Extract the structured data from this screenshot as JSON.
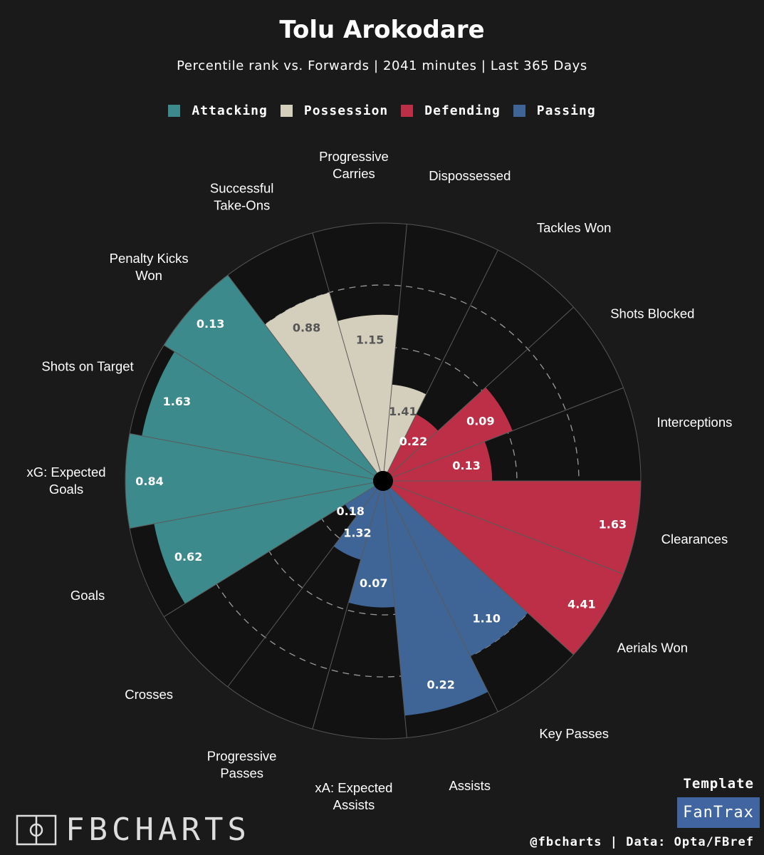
{
  "header": {
    "title": "Tolu Arokodare",
    "subtitle": "Percentile rank vs. Forwards | 2041 minutes | Last 365 Days"
  },
  "legend": [
    {
      "label": "Attacking",
      "color": "#3d8a8c"
    },
    {
      "label": "Possession",
      "color": "#d4cfbd"
    },
    {
      "label": "Defending",
      "color": "#bc2f46"
    },
    {
      "label": "Passing",
      "color": "#3f6496"
    }
  ],
  "colors": {
    "background": "#1a1a1a",
    "slice_background": "#121212",
    "Attacking": "#3d8a8c",
    "Possession": "#d4cfbd",
    "Defending": "#bc2f46",
    "Passing": "#3f6496"
  },
  "chart_data": {
    "type": "polar-bar",
    "title": "Tolu Arokodare",
    "subtitle": "Percentile rank vs. Forwards | 2041 minutes | Last 365 Days",
    "rlim": [
      0,
      100
    ],
    "gridlines": [
      25,
      50,
      75
    ],
    "start": "right, counter-clockwise",
    "categories": [
      {
        "label": "Interceptions",
        "group": "Defending",
        "percentile": 40,
        "value": "0.13"
      },
      {
        "label": "Shots Blocked",
        "group": "Defending",
        "percentile": 52,
        "value": "0.09"
      },
      {
        "label": "Tackles Won",
        "group": "Defending",
        "percentile": 26,
        "value": "0.22"
      },
      {
        "label": "Dispossessed",
        "group": "Possession",
        "percentile": 35,
        "value": "1.41"
      },
      {
        "label": "Progressive\nCarries",
        "group": "Possession",
        "percentile": 63,
        "value": "1.15"
      },
      {
        "label": "Successful\nTake-Ons",
        "group": "Possession",
        "percentile": 75,
        "value": "0.88"
      },
      {
        "label": "Penalty Kicks\nWon",
        "group": "Attacking",
        "percentile": 100,
        "value": "0.13"
      },
      {
        "label": "Shots on Target",
        "group": "Attacking",
        "percentile": 95,
        "value": "1.63"
      },
      {
        "label": "xG: Expected\nGoals",
        "group": "Attacking",
        "percentile": 100,
        "value": "0.84"
      },
      {
        "label": "Goals",
        "group": "Attacking",
        "percentile": 90,
        "value": "0.62"
      },
      {
        "label": "Crosses",
        "group": "Passing",
        "percentile": 14,
        "value": "0.18"
      },
      {
        "label": "Progressive\nPasses",
        "group": "Passing",
        "percentile": 29,
        "value": "1.32"
      },
      {
        "label": "xA: Expected\nAssists",
        "group": "Passing",
        "percentile": 47,
        "value": "0.07"
      },
      {
        "label": "Assists",
        "group": "Passing",
        "percentile": 91,
        "value": "0.22"
      },
      {
        "label": "Key Passes",
        "group": "Passing",
        "percentile": 75,
        "value": "1.10"
      },
      {
        "label": "Aerials Won",
        "group": "Defending",
        "percentile": 100,
        "value": "4.41"
      },
      {
        "label": "Clearances",
        "group": "Defending",
        "percentile": 100,
        "value": "1.63"
      }
    ]
  },
  "footer": {
    "brand": "FBCHARTS",
    "template_label": "Template",
    "template_name": "FanTrax",
    "credits": "@fbcharts | Data: Opta/FBref"
  }
}
